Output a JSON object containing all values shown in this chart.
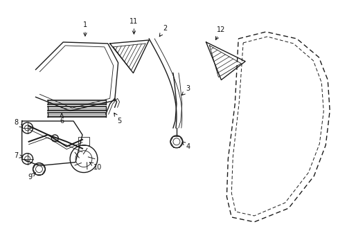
{
  "bg_color": "#ffffff",
  "line_color": "#1a1a1a",
  "figsize": [
    4.89,
    3.6
  ],
  "dpi": 100,
  "lw": 1.0,
  "lw_thick": 1.4,
  "lw_thin": 0.6
}
